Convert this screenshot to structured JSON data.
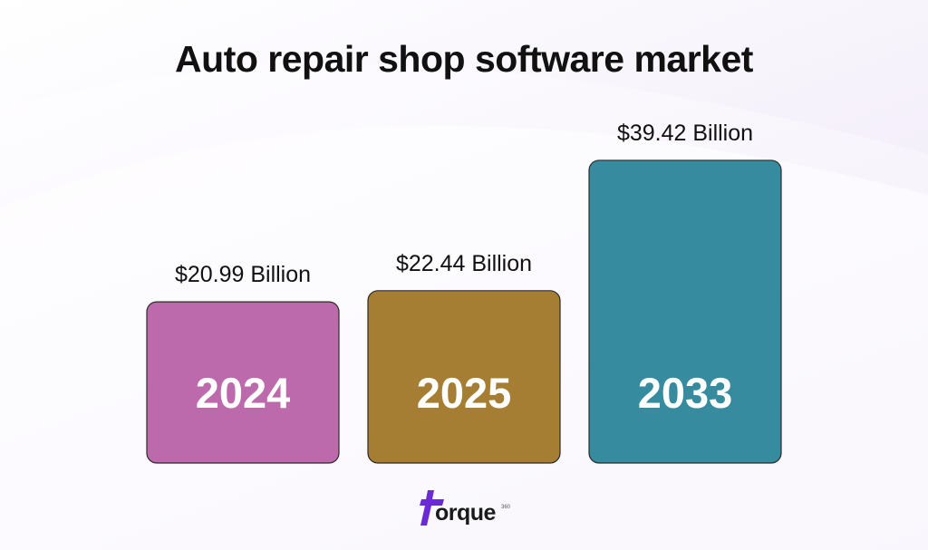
{
  "colors": {
    "background": "#f6f2fb",
    "title": "#111111",
    "logo_accent": "#6a2bd6"
  },
  "chart_data": {
    "type": "bar",
    "title": "Auto repair shop software market",
    "categories": [
      "2024",
      "2025",
      "2033"
    ],
    "values": [
      20.99,
      22.44,
      39.42
    ],
    "value_labels": [
      "$20.99 Billion",
      "$22.44 Billion",
      "$39.42 Billion"
    ],
    "bar_colors": [
      "#bd6aad",
      "#a57e33",
      "#368b9e"
    ],
    "unit": "Billion USD",
    "xlabel": "",
    "ylabel": "",
    "grid": false,
    "legend": "none"
  },
  "logo": {
    "text": "orque",
    "superscript": "360"
  }
}
